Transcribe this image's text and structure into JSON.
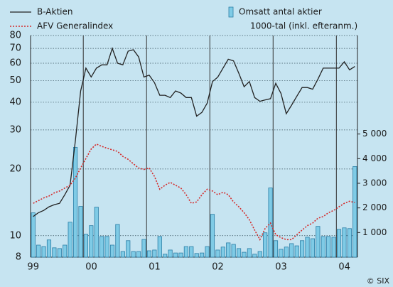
{
  "chart_data": {
    "type": "combo",
    "source": "© SIX",
    "y2_label": "1000-tal (inkl. efteranm.)",
    "categories": [
      "99",
      null,
      null,
      null,
      null,
      null,
      null,
      null,
      null,
      null,
      "00",
      null,
      null,
      null,
      null,
      null,
      null,
      null,
      null,
      null,
      null,
      null,
      "01",
      null,
      null,
      null,
      null,
      null,
      null,
      null,
      null,
      null,
      null,
      null,
      "02",
      null,
      null,
      null,
      null,
      null,
      null,
      null,
      null,
      null,
      null,
      null,
      "03",
      null,
      null,
      null,
      null,
      null,
      null,
      null,
      null,
      null,
      null,
      null,
      "04",
      null,
      null,
      null
    ],
    "ylim": [
      8,
      80
    ],
    "yticks": [
      8,
      10,
      20,
      30,
      40,
      50,
      60,
      70,
      80
    ],
    "log_y": true,
    "y2lim": [
      0,
      9000
    ],
    "y2ticks": [
      {
        "value": 1000,
        "label": "1 000"
      },
      {
        "value": 2000,
        "label": "2 000"
      },
      {
        "value": 3000,
        "label": "3 000"
      },
      {
        "value": 4000,
        "label": "4 000"
      },
      {
        "value": 5000,
        "label": "5 000"
      }
    ],
    "grid": true,
    "series": [
      {
        "name": "Omsatt antal aktier",
        "type": "bar",
        "axis": "y2",
        "color": "#7fcbe6",
        "values": [
          1800,
          490,
          430,
          700,
          380,
          350,
          490,
          1420,
          4460,
          2060,
          930,
          1280,
          2030,
          840,
          840,
          490,
          1330,
          230,
          670,
          230,
          230,
          720,
          260,
          290,
          840,
          120,
          290,
          170,
          170,
          430,
          430,
          150,
          170,
          430,
          1740,
          290,
          410,
          580,
          520,
          350,
          200,
          350,
          120,
          230,
          990,
          2810,
          670,
          320,
          410,
          550,
          460,
          670,
          810,
          750,
          1250,
          840,
          840,
          810,
          1130,
          1190,
          1160,
          3680
        ]
      },
      {
        "name": "B-Aktien",
        "type": "line",
        "color": "#222222",
        "values": [
          12.2,
          12.7,
          13.0,
          13.5,
          13.8,
          14.0,
          15.3,
          16.9,
          26.9,
          45,
          57,
          52,
          57,
          59,
          59,
          70,
          60,
          59,
          68,
          69,
          64,
          52,
          53,
          49,
          43,
          43,
          42,
          45,
          44,
          42,
          42,
          34.6,
          36,
          39.6,
          49.6,
          51.9,
          57,
          62.5,
          61.5,
          54,
          47,
          49.6,
          42,
          40.4,
          41,
          41.5,
          48.7,
          43.8,
          35.5,
          38.8,
          42.6,
          46.6,
          46.6,
          45.8,
          50.9,
          57,
          57,
          57,
          57,
          60.9,
          56,
          58
        ]
      },
      {
        "name": "AFV Generalindex",
        "type": "line",
        "dashed": true,
        "color": "#d42a2a",
        "values": [
          14.0,
          14.4,
          14.8,
          15.1,
          15.6,
          15.9,
          16.4,
          16.9,
          18.2,
          20.2,
          22.3,
          24.6,
          25.9,
          25.3,
          24.8,
          24.4,
          24.0,
          22.8,
          22.1,
          21.1,
          20.2,
          19.9,
          20.2,
          18.5,
          16.2,
          16.9,
          17.4,
          16.9,
          16.4,
          15.3,
          14.0,
          14.2,
          15.3,
          16.2,
          15.9,
          15.3,
          15.7,
          15.3,
          14.2,
          13.5,
          12.7,
          11.8,
          10.6,
          9.6,
          10.8,
          11.4,
          10.1,
          9.8,
          9.6,
          9.6,
          10.1,
          10.6,
          11.1,
          11.4,
          12.0,
          12.2,
          12.7,
          13.0,
          13.5,
          14.0,
          14.3,
          14.1
        ]
      }
    ]
  }
}
